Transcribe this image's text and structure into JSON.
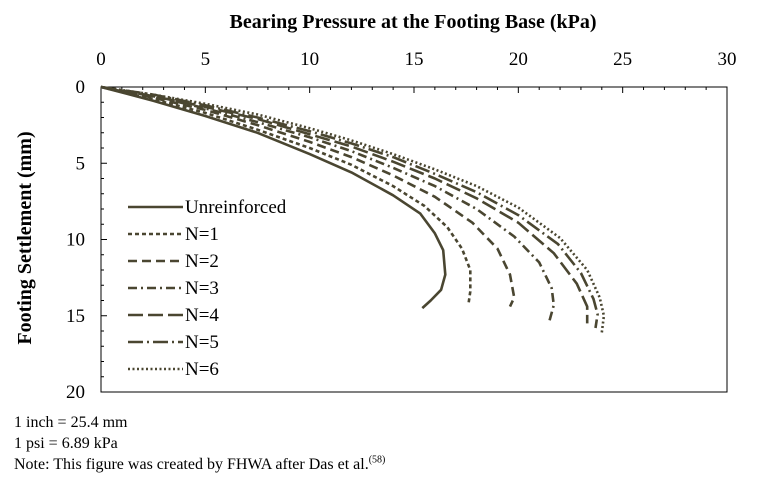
{
  "chart_data": {
    "type": "line",
    "title": "Bearing Pressure at the Footing Base (kPa)",
    "xlabel": "",
    "ylabel": "Footing Settlement (mm)",
    "xlim": [
      0,
      30
    ],
    "ylim": [
      0,
      20
    ],
    "y_inverted": true,
    "x_ticks": [
      0,
      5,
      10,
      15,
      20,
      25,
      30
    ],
    "y_ticks": [
      0,
      5,
      10,
      15,
      20
    ],
    "x_axis_position": "top",
    "grid": false,
    "legend_position": "lower-left",
    "series": [
      {
        "name": "Unreinforced",
        "dash": "solid",
        "color": "#4a4631",
        "x": [
          0,
          2.5,
          5,
          7.5,
          10,
          12,
          14,
          15.3,
          16.0,
          16.4,
          16.5,
          16.3,
          15.8,
          15.4
        ],
        "y": [
          0,
          0.9,
          1.9,
          3.0,
          4.4,
          5.6,
          7.1,
          8.3,
          9.6,
          10.7,
          12.3,
          13.3,
          14.0,
          14.5
        ]
      },
      {
        "name": "N=1",
        "dash": "short-dash",
        "color": "#4a4631",
        "x": [
          0,
          2.5,
          5,
          7.5,
          10,
          12,
          14,
          15.5,
          16.6,
          17.3,
          17.7,
          17.7,
          17.6
        ],
        "y": [
          0,
          0.8,
          1.7,
          2.8,
          4.0,
          5.1,
          6.5,
          7.8,
          9.2,
          10.6,
          12.0,
          13.4,
          14.3
        ]
      },
      {
        "name": "N=2",
        "dash": "dash",
        "color": "#4a4631",
        "x": [
          0,
          2.5,
          5,
          7.5,
          10,
          12,
          14,
          16,
          17.8,
          19.0,
          19.6,
          19.8,
          19.6
        ],
        "y": [
          0,
          0.7,
          1.5,
          2.5,
          3.6,
          4.6,
          5.8,
          7.2,
          8.9,
          10.6,
          12.3,
          13.8,
          14.4
        ]
      },
      {
        "name": "N=3",
        "dash": "dash-dot",
        "color": "#4a4631",
        "x": [
          0,
          2.5,
          5,
          7.5,
          10,
          12,
          14,
          16,
          18,
          19.8,
          21.0,
          21.6,
          21.7,
          21.5
        ],
        "y": [
          0,
          0.6,
          1.4,
          2.3,
          3.3,
          4.2,
          5.3,
          6.5,
          8.0,
          9.8,
          11.5,
          13.2,
          14.3,
          15.3
        ]
      },
      {
        "name": "N=4",
        "dash": "long-dash",
        "color": "#4a4631",
        "x": [
          0,
          2.5,
          5,
          7.5,
          10,
          12,
          14,
          16,
          18,
          20,
          21.7,
          22.8,
          23.3,
          23.3
        ],
        "y": [
          0,
          0.6,
          1.3,
          2.1,
          3.1,
          3.9,
          4.9,
          6.0,
          7.3,
          8.9,
          10.9,
          12.9,
          14.4,
          15.5
        ]
      },
      {
        "name": "N=5",
        "dash": "long-dash-dot",
        "color": "#4a4631",
        "x": [
          0,
          2.5,
          5,
          7.5,
          10,
          12,
          14,
          16,
          18,
          20,
          21.9,
          23.0,
          23.6,
          23.8,
          23.7
        ],
        "y": [
          0,
          0.5,
          1.2,
          2.0,
          2.9,
          3.7,
          4.6,
          5.7,
          6.9,
          8.4,
          10.3,
          12.2,
          13.9,
          14.9,
          15.8
        ]
      },
      {
        "name": "N=6",
        "dash": "dot",
        "color": "#4a4631",
        "x": [
          0,
          2.5,
          5,
          7.5,
          10,
          12,
          14,
          16,
          18,
          20,
          22,
          23.3,
          23.9,
          24.1,
          24.0
        ],
        "y": [
          0,
          0.5,
          1.1,
          1.8,
          2.7,
          3.5,
          4.4,
          5.4,
          6.5,
          7.9,
          9.9,
          12.0,
          13.8,
          15.0,
          16.1
        ]
      }
    ]
  },
  "notes": {
    "line1": "1 inch = 25.4 mm",
    "line2": "1 psi = 6.89 kPa",
    "line3": "Note: This figure was created by FHWA after Das et al.",
    "line3_ref": "(58)"
  }
}
